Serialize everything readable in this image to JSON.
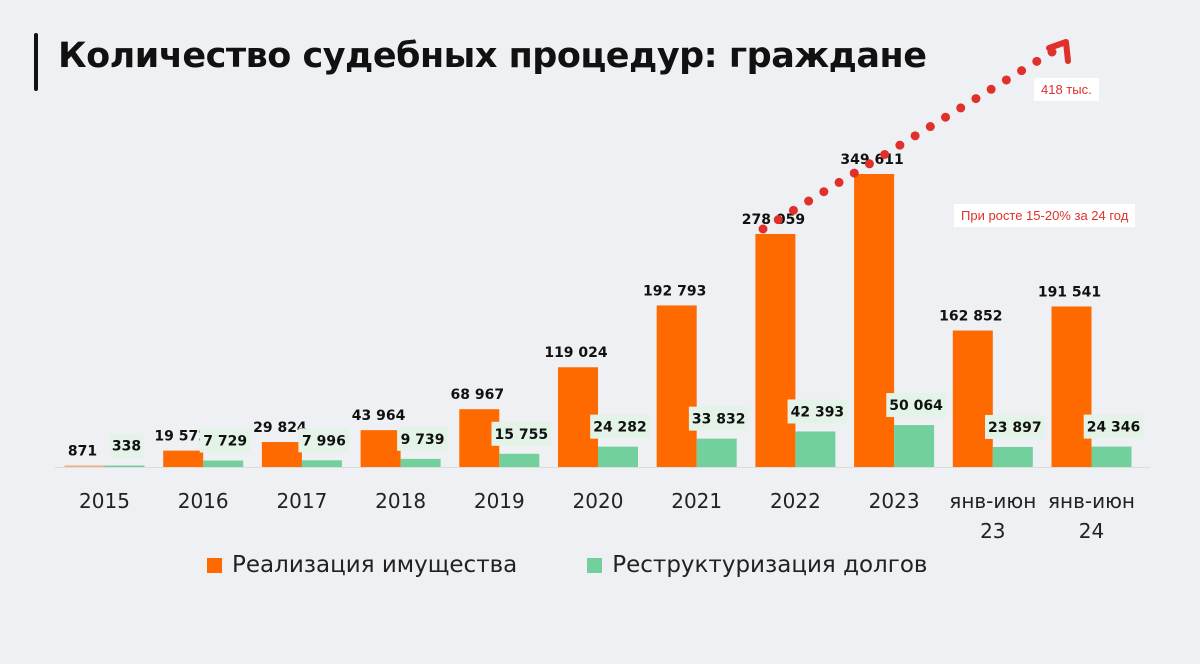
{
  "title": "Количество судебных процедур: граждане",
  "chart_data": {
    "type": "bar",
    "categories": [
      "2015",
      "2016",
      "2017",
      "2018",
      "2019",
      "2020",
      "2021",
      "2022",
      "2023",
      "янв-июн 23",
      "янв-июн 24"
    ],
    "series": [
      {
        "name": "Реализация имущества",
        "color": "#ff6a00",
        "values": [
          871,
          19572,
          29824,
          43964,
          68967,
          119024,
          192793,
          278059,
          349611,
          162852,
          191541
        ],
        "labels": [
          "871",
          "19 572",
          "29 824",
          "43 964",
          "68 967",
          "119 024",
          "192 793",
          "278 059",
          "349 611",
          "162 852",
          "191 541"
        ]
      },
      {
        "name": "Реструктуризация долгов",
        "color": "#72d09c",
        "values": [
          338,
          7729,
          7996,
          9739,
          15755,
          24282,
          33832,
          42393,
          50064,
          23897,
          24346
        ],
        "labels": [
          "338",
          "7 729",
          "7 996",
          "9 739",
          "15 755",
          "24 282",
          "33 832",
          "42 393",
          "50 064",
          "23 897",
          "24 346"
        ]
      }
    ],
    "ylim": [
      0,
      350000
    ],
    "grid": false,
    "legend_position": "bottom",
    "annotations": {
      "trend_target": "418 тыс.",
      "trend_note": "При росте 15-20% за 24 год",
      "trend_color": "#e0302b"
    }
  }
}
